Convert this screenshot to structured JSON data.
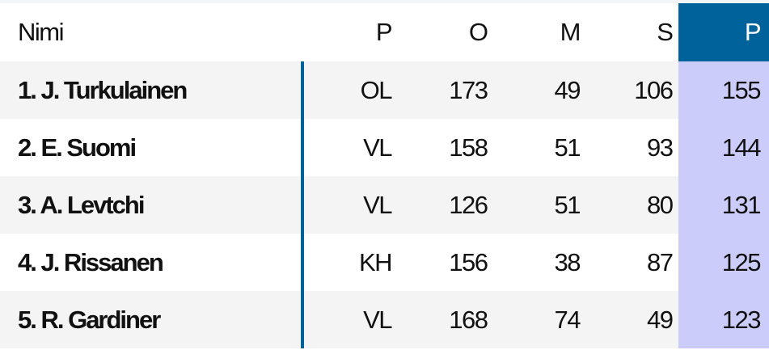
{
  "colors": {
    "accent": "#00629b",
    "highlight": "#ccccfa"
  },
  "headers": {
    "name": "Nimi",
    "position": "P",
    "games": "O",
    "goals": "M",
    "assists": "S",
    "points": "P"
  },
  "rows": [
    {
      "name": "1.  J. Turkulainen",
      "position": "OL",
      "games": "173",
      "goals": "49",
      "assists": "106",
      "points": "155"
    },
    {
      "name": "2.  E. Suomi",
      "position": "VL",
      "games": "158",
      "goals": "51",
      "assists": "93",
      "points": "144"
    },
    {
      "name": "3.  A. Levtchi",
      "position": "VL",
      "games": "126",
      "goals": "51",
      "assists": "80",
      "points": "131"
    },
    {
      "name": "4.  J. Rissanen",
      "position": "KH",
      "games": "156",
      "goals": "38",
      "assists": "87",
      "points": "125"
    },
    {
      "name": "5.  R. Gardiner",
      "position": "VL",
      "games": "168",
      "goals": "74",
      "assists": "49",
      "points": "123"
    }
  ]
}
